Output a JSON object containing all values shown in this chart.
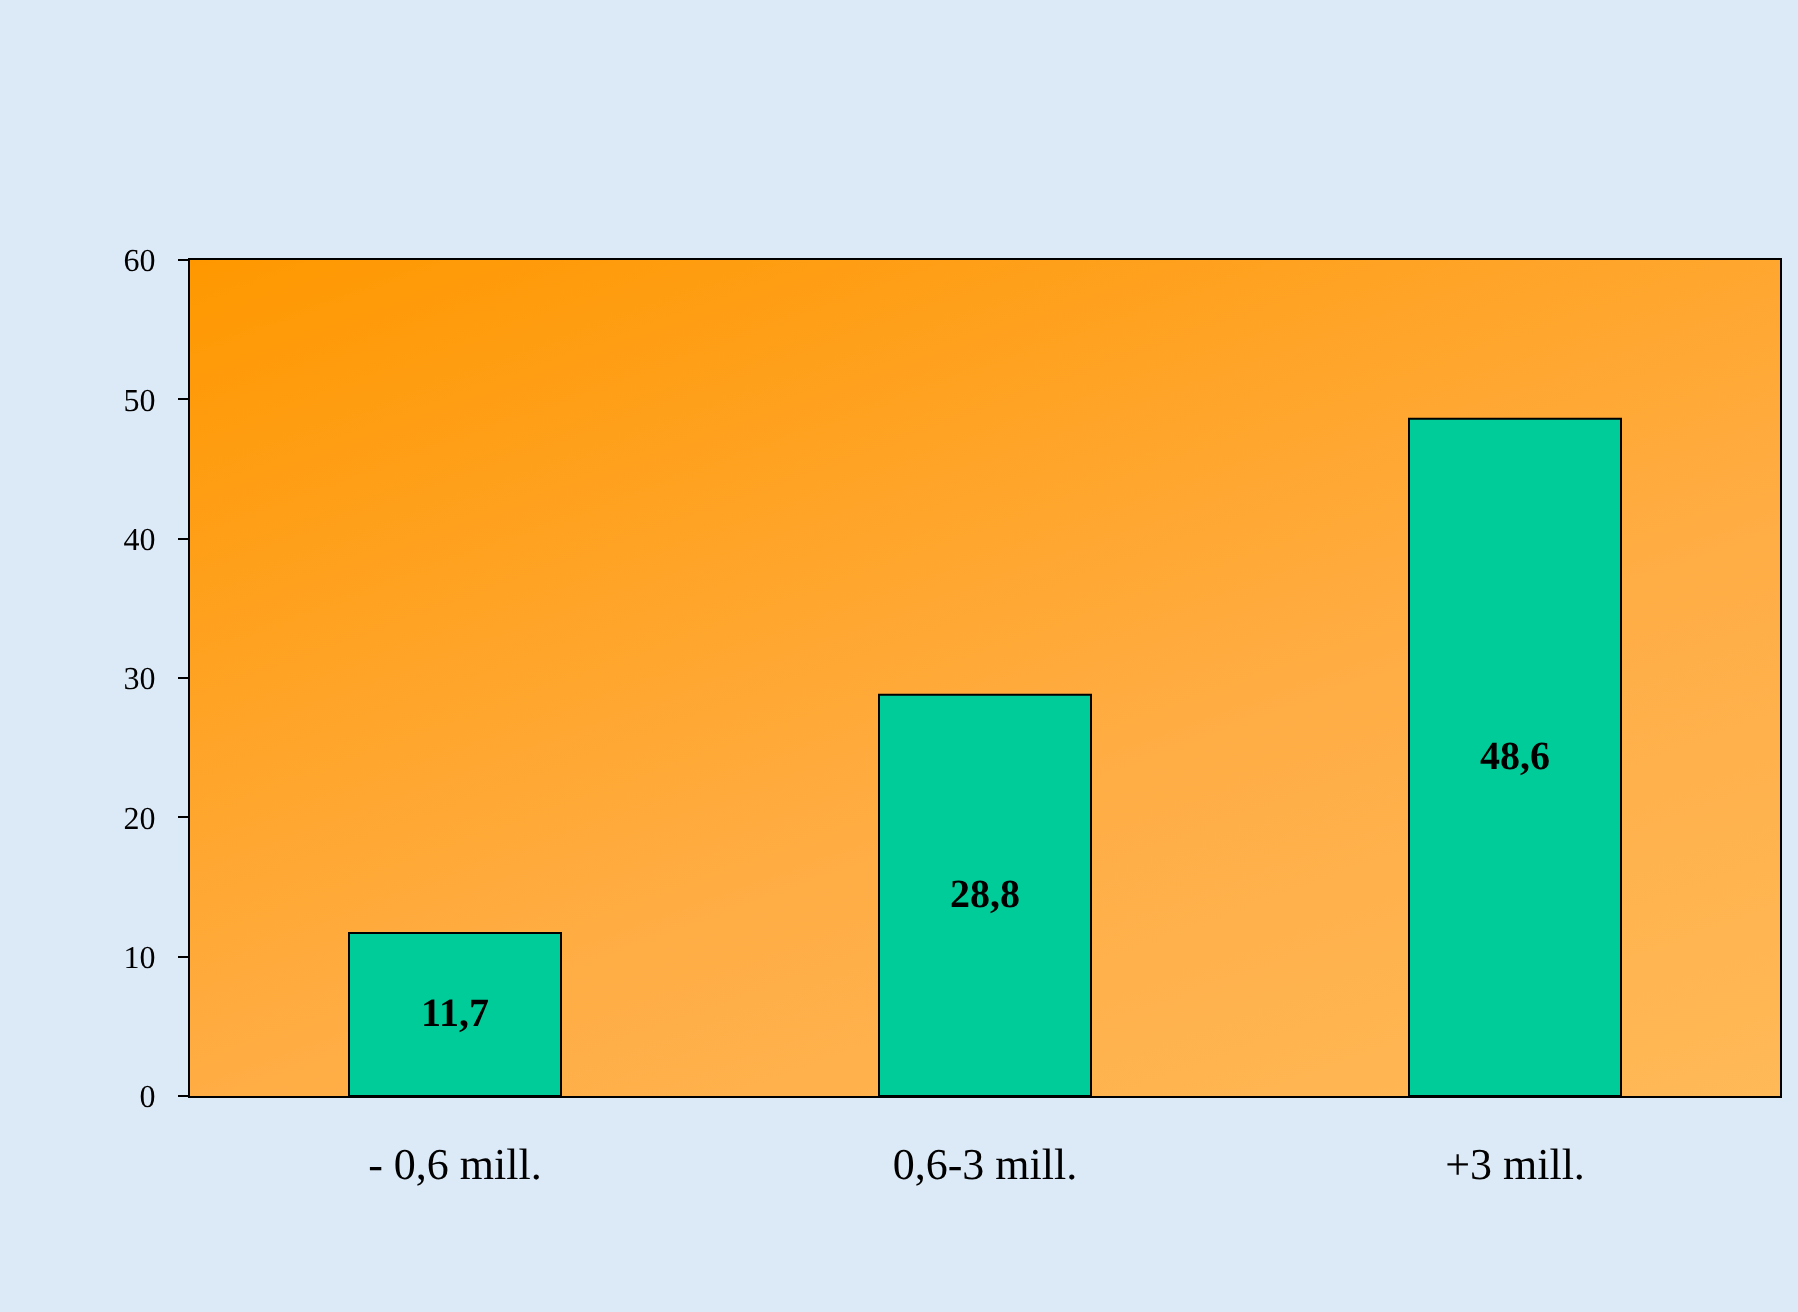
{
  "chart_data": {
    "type": "bar",
    "categories": [
      "- 0,6 mill.",
      "0,6-3 mill.",
      "+3 mill."
    ],
    "values": [
      11.7,
      28.8,
      48.6
    ],
    "value_labels": [
      "11,7",
      "28,8",
      "48,6"
    ],
    "color": "#00cc99",
    "ylim": [
      0,
      60
    ],
    "yticks": [
      0,
      10,
      20,
      30,
      40,
      50,
      60
    ]
  }
}
